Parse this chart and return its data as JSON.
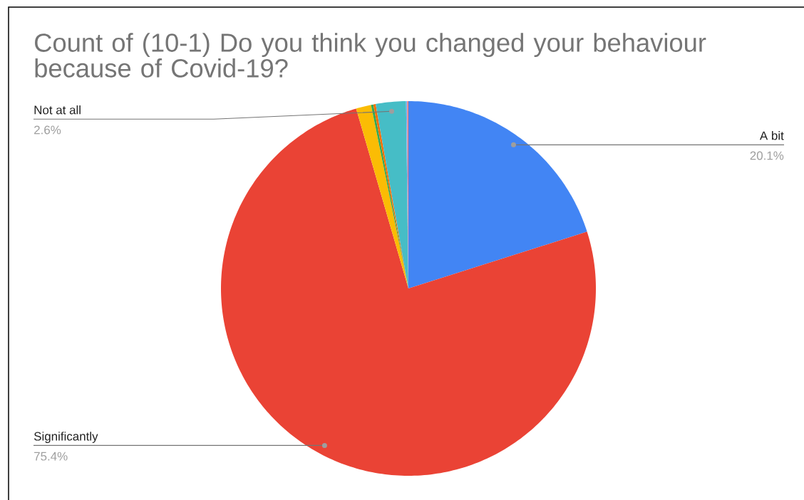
{
  "chart_data": {
    "type": "pie",
    "title": "Count of (10-1) Do you think you changed your behaviour because of Covid-19?",
    "categories": [
      "A bit",
      "Significantly",
      null,
      null,
      null,
      "Not at all",
      null,
      null
    ],
    "values": [
      20.1,
      75.4,
      1.3,
      0.2,
      0.2,
      2.6,
      0.1,
      0.1
    ],
    "colors": [
      "#4285f4",
      "#ea4335",
      "#fbbc04",
      "#34a853",
      "#ff6d01",
      "#46bdc6",
      "#7baaf7",
      "#f07b72"
    ],
    "value_labels": [
      "20.1%",
      "75.4%",
      null,
      null,
      null,
      "2.6%",
      null,
      null
    ]
  }
}
